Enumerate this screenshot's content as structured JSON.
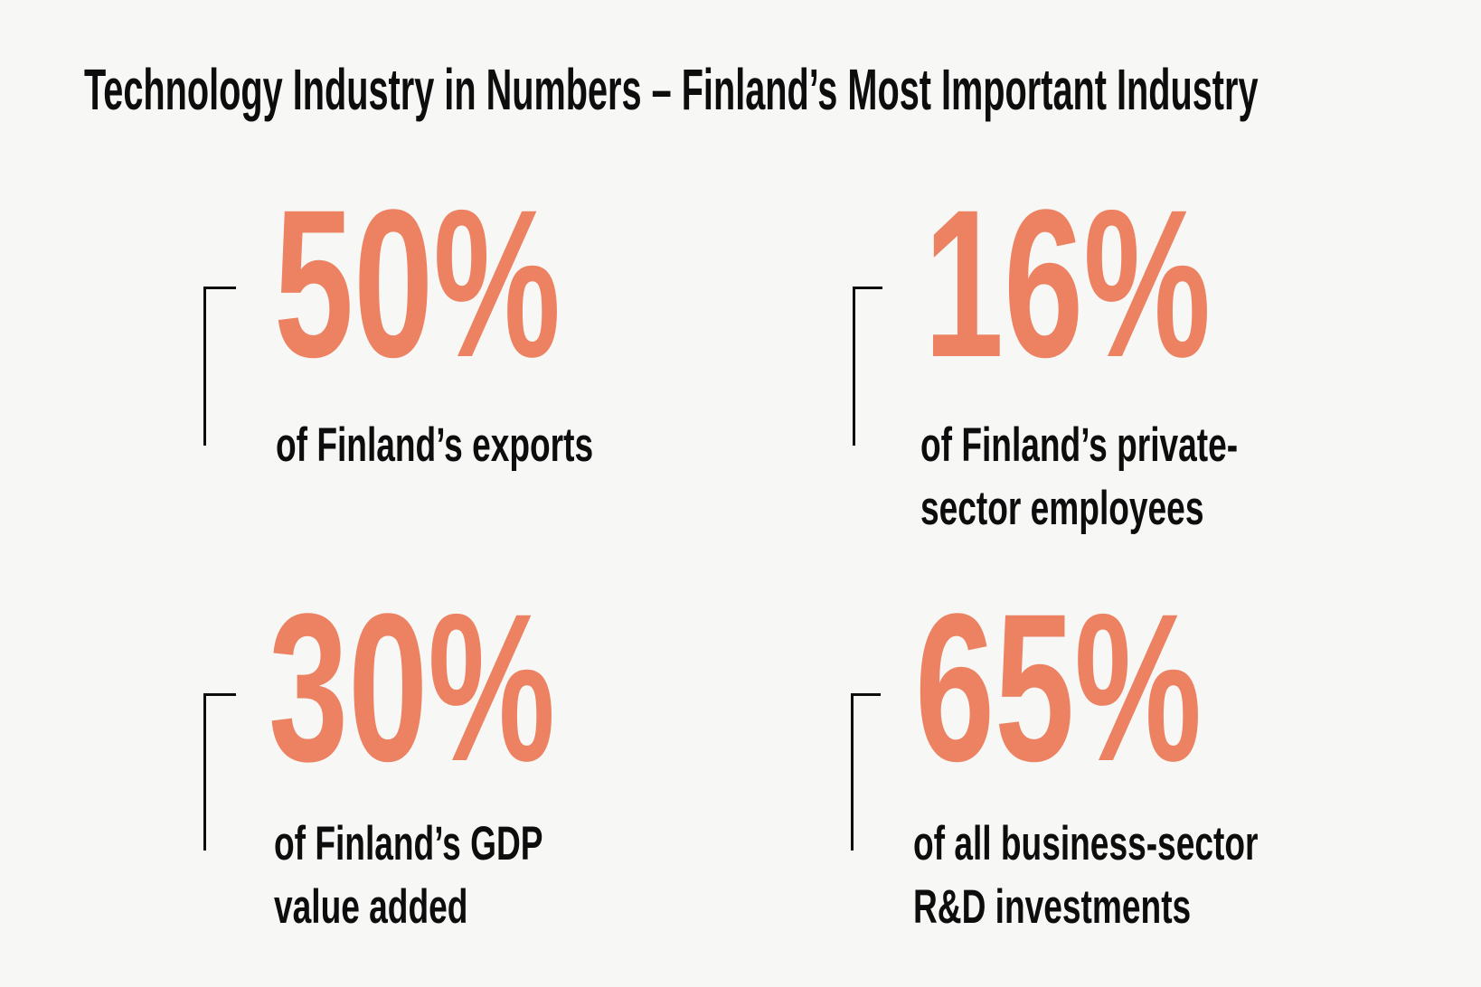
{
  "title": "Technology Industry in Numbers – Finland’s Most Important Industry",
  "colors": {
    "background": "#F7F7F6",
    "accent": "#EC8262",
    "ink": "#0D0D0D"
  },
  "stats": [
    {
      "id": "exports",
      "value": "50%",
      "label_line1": "of Finland’s exports",
      "label_line2": ""
    },
    {
      "id": "private-sector-employees",
      "value": "16%",
      "label_line1": "of Finland’s private-",
      "label_line2": "sector employees"
    },
    {
      "id": "gdp-value-added",
      "value": "30%",
      "label_line1": "of Finland’s GDP",
      "label_line2": "value added"
    },
    {
      "id": "rd-investments",
      "value": "65%",
      "label_line1": "of all business-sector",
      "label_line2": "R&D investments"
    }
  ]
}
